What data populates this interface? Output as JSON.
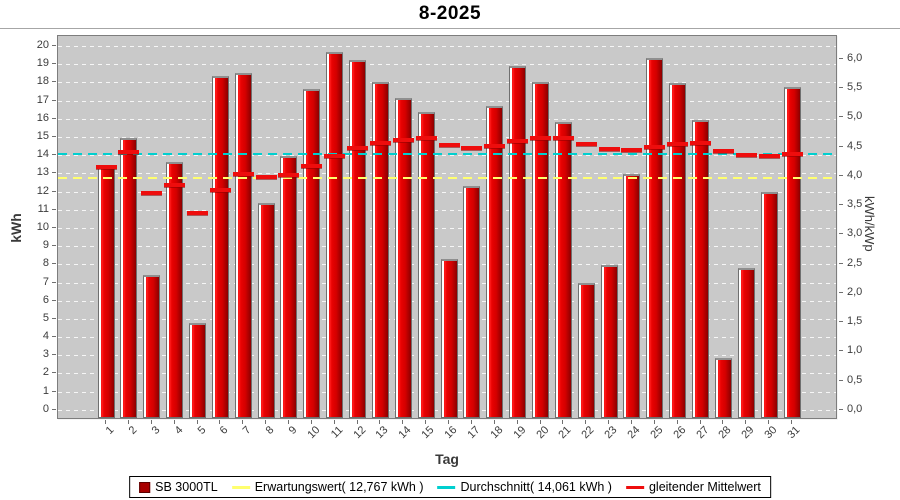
{
  "title": "8-2025",
  "chart_data": {
    "type": "bar",
    "title": "8-2025",
    "xlabel": "Tag",
    "ylabel_left": "kWh",
    "ylabel_right": "kWh/kWp",
    "categories": [
      "1",
      "2",
      "3",
      "4",
      "5",
      "6",
      "7",
      "8",
      "9",
      "10",
      "11",
      "12",
      "13",
      "14",
      "15",
      "16",
      "17",
      "18",
      "19",
      "20",
      "21",
      "22",
      "23",
      "24",
      "25",
      "26",
      "27",
      "28",
      "29",
      "30",
      "31"
    ],
    "series": [
      {
        "name": "SB 3000TL",
        "type": "bar",
        "color": "#dd0000",
        "values": [
          13.35,
          14.95,
          7.4,
          13.65,
          4.75,
          18.35,
          18.5,
          11.35,
          13.95,
          17.65,
          19.65,
          19.25,
          18.0,
          17.15,
          16.35,
          8.3,
          12.3,
          16.7,
          18.9,
          18.0,
          15.85,
          7.0,
          7.95,
          12.95,
          19.35,
          17.95,
          15.95,
          2.85,
          7.8,
          12.0,
          17.75
        ]
      },
      {
        "name": "gleitender Mittelwert",
        "type": "line-segments",
        "color": "#ee0d0d",
        "values": [
          13.35,
          14.15,
          11.9,
          12.34,
          10.82,
          12.08,
          12.99,
          12.79,
          12.92,
          13.39,
          13.96,
          14.4,
          14.68,
          14.85,
          14.95,
          14.54,
          14.41,
          14.53,
          14.76,
          14.93,
          14.97,
          14.61,
          14.32,
          14.26,
          14.46,
          14.6,
          14.65,
          14.23,
          14.01,
          13.94,
          14.06
        ]
      }
    ],
    "reference_lines": [
      {
        "key": "erwartungswert",
        "name": "Erwartungswert( 12,767 kWh )",
        "value": 12.767,
        "color": "#ffff6e",
        "style": "dashed"
      },
      {
        "key": "durchschnitt",
        "name": "Durchschnitt( 14,061 kWh )",
        "value": 14.061,
        "color": "#00cfcf",
        "style": "dashed"
      }
    ],
    "left_axis": {
      "label": "kWh",
      "ticks": [
        0,
        1,
        2,
        3,
        4,
        5,
        6,
        7,
        8,
        9,
        10,
        11,
        12,
        13,
        14,
        15,
        16,
        17,
        18,
        19,
        20
      ]
    },
    "right_axis": {
      "label": "kWh/kWp",
      "tick_values": [
        0,
        0.5,
        1,
        1.5,
        2,
        2.5,
        3,
        3.5,
        4,
        4.5,
        5,
        5.5,
        6
      ],
      "tick_labels": [
        "0,0",
        "0,5",
        "1,0",
        "1,5",
        "2,0",
        "2,5",
        "3,0",
        "3,5",
        "4,0",
        "4,5",
        "5,0",
        "5,5",
        "6,0"
      ],
      "kwh_per_unit": 3.215
    },
    "ylim": [
      -0.45,
      20.55
    ],
    "grid": "horizontal-dashed-white",
    "plot_background": "#c9c9c9",
    "legend_position": "bottom"
  },
  "legend": {
    "items": [
      {
        "marker": "square",
        "color": "#a80000",
        "label": "SB 3000TL"
      },
      {
        "marker": "dash",
        "color": "#ffff6e",
        "label": "Erwartungswert( 12,767 kWh )"
      },
      {
        "marker": "dash",
        "color": "#00cfcf",
        "label": "Durchschnitt( 14,061 kWh )"
      },
      {
        "marker": "dash",
        "color": "#ee0d0d",
        "label": "gleitender Mittelwert"
      }
    ]
  }
}
